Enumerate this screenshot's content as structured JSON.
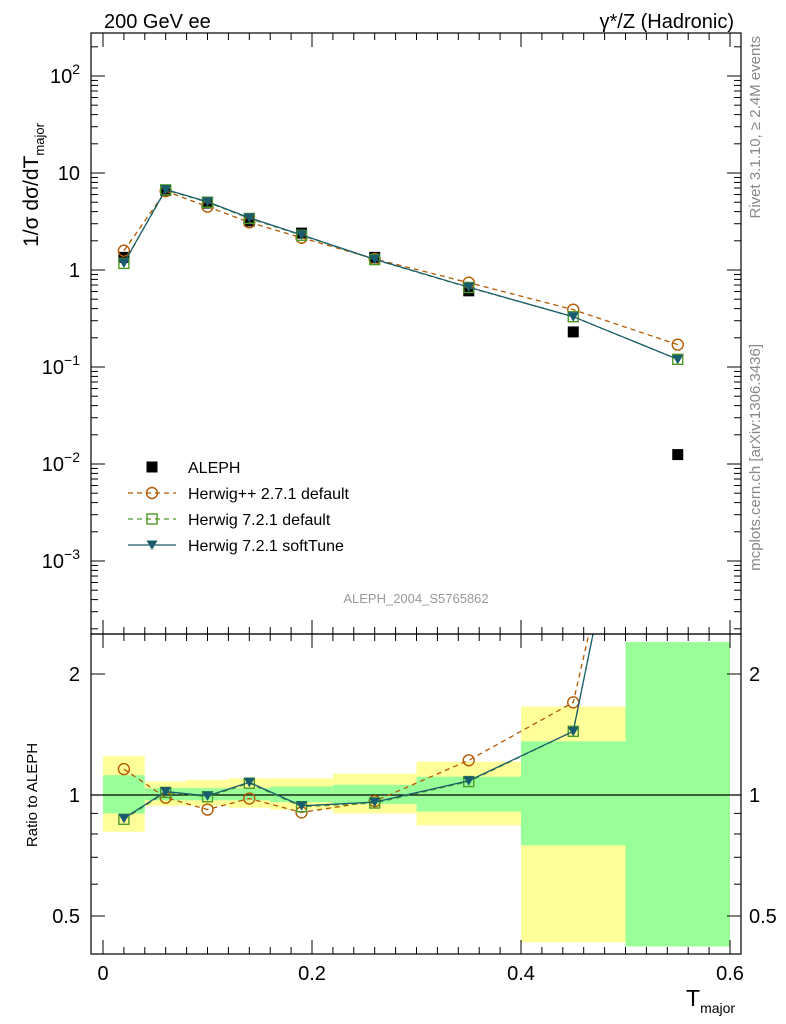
{
  "header": {
    "left": "200 GeV ee",
    "right": "γ*/Z (Hadronic)"
  },
  "side": {
    "rivet": "Rivet 3.1.10, ≥ 2.4M events",
    "mcplots": "mcplots.cern.ch [arXiv:1306.3436]"
  },
  "watermark": "ALEPH_2004_S5765862",
  "axes": {
    "y_top_label": "1/σ  dσ/dT",
    "y_top_sub": "major",
    "y_bottom_label": "Ratio to ALEPH",
    "x_label": "T",
    "x_sub": "major"
  },
  "colors": {
    "aleph": "#000000",
    "herwigpp": "#b35900",
    "herwig721": "#4d9a26",
    "softtune": "#1a5c6e",
    "band_inner": "#99ff99",
    "band_outer": "#ffff99"
  },
  "chart_data": [
    {
      "type": "scatter",
      "panel": "main",
      "yscale": "log",
      "xlim": [
        0,
        0.6
      ],
      "ylim": [
        0.0002,
        300
      ],
      "ytick_labels": [
        "10^-3",
        "10^-2",
        "10^-1",
        "1",
        "10",
        "10^2"
      ],
      "xtick_labels": [
        "0",
        "0.2",
        "0.4",
        "0.6"
      ],
      "legend_position": "lower-left",
      "x": [
        0.02,
        0.06,
        0.1,
        0.14,
        0.19,
        0.26,
        0.35,
        0.45,
        0.55
      ],
      "series": [
        {
          "name": "ALEPH",
          "marker": "square",
          "values": [
            1.35,
            6.6,
            4.9,
            3.2,
            2.4,
            1.35,
            0.61,
            0.23,
            0.0125
          ]
        },
        {
          "name": "Herwig++ 2.7.1 default",
          "marker": "circle",
          "line": "dashed",
          "values": [
            1.58,
            6.5,
            4.5,
            3.1,
            2.15,
            1.3,
            0.74,
            0.39,
            0.17
          ]
        },
        {
          "name": "Herwig 7.2.1 default",
          "marker": "open-square",
          "line": "dashed",
          "values": [
            1.17,
            6.7,
            5.0,
            3.4,
            2.28,
            1.28,
            0.66,
            0.33,
            0.12
          ]
        },
        {
          "name": "Herwig 7.2.1 softTune",
          "marker": "triangle-down",
          "line": "solid",
          "values": [
            1.18,
            6.75,
            5.05,
            3.45,
            2.3,
            1.29,
            0.665,
            0.33,
            0.12
          ]
        }
      ]
    },
    {
      "type": "line",
      "panel": "ratio",
      "yscale": "log",
      "xlim": [
        0,
        0.6
      ],
      "ylim": [
        0.4,
        2.4
      ],
      "ytick_labels": [
        "0.5",
        "1",
        "2"
      ],
      "x": [
        0.02,
        0.06,
        0.1,
        0.14,
        0.19,
        0.26,
        0.35,
        0.45
      ],
      "bins": [
        {
          "x0": 0.0,
          "x1": 0.04,
          "inner": [
            0.9,
            1.12
          ],
          "outer": [
            0.81,
            1.25
          ]
        },
        {
          "x0": 0.04,
          "x1": 0.08,
          "inner": [
            0.97,
            1.04
          ],
          "outer": [
            0.94,
            1.08
          ]
        },
        {
          "x0": 0.08,
          "x1": 0.12,
          "inner": [
            0.97,
            1.04
          ],
          "outer": [
            0.94,
            1.09
          ]
        },
        {
          "x0": 0.12,
          "x1": 0.16,
          "inner": [
            0.97,
            1.04
          ],
          "outer": [
            0.93,
            1.1
          ]
        },
        {
          "x0": 0.16,
          "x1": 0.22,
          "inner": [
            0.96,
            1.05
          ],
          "outer": [
            0.92,
            1.1
          ]
        },
        {
          "x0": 0.22,
          "x1": 0.3,
          "inner": [
            0.95,
            1.06
          ],
          "outer": [
            0.9,
            1.13
          ]
        },
        {
          "x0": 0.3,
          "x1": 0.4,
          "inner": [
            0.91,
            1.11
          ],
          "outer": [
            0.84,
            1.21
          ]
        },
        {
          "x0": 0.4,
          "x1": 0.5,
          "inner": [
            0.75,
            1.36
          ],
          "outer": [
            0.43,
            1.66
          ]
        },
        {
          "x0": 0.5,
          "x1": 0.6,
          "inner": [
            0.42,
            2.4
          ],
          "outer": [
            0.42,
            2.4
          ]
        }
      ],
      "series": [
        {
          "name": "Herwig++ 2.7.1 default",
          "values": [
            1.16,
            0.985,
            0.92,
            0.98,
            0.905,
            0.965,
            1.22,
            1.7
          ]
        },
        {
          "name": "Herwig 7.2.1 default",
          "values": [
            0.87,
            1.015,
            0.99,
            1.07,
            0.935,
            0.955,
            1.08,
            1.44
          ]
        },
        {
          "name": "Herwig 7.2.1 softTune",
          "values": [
            0.875,
            1.02,
            0.995,
            1.075,
            0.94,
            0.96,
            1.085,
            1.44
          ]
        }
      ]
    }
  ]
}
